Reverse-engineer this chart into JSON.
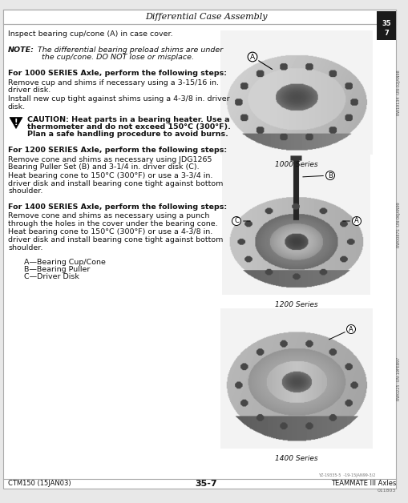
{
  "title": "Differential Case Assembly",
  "header_text": "Differential Case Assembly",
  "tab_number": "35\n7",
  "footer_left": "CTM150 (15JAN03)",
  "footer_center": "35-7",
  "footer_right": "TEAMMATE III Axles",
  "footer_sub": "011803",
  "side_labels": [
    "RW19134 -UN-02JAN98",
    "RW0087S -UN-06JAN99",
    "RW0225 -UN-19FEB97"
  ],
  "image_captions": [
    "1000 Series",
    "1200 Series",
    "1400 Series"
  ],
  "page_bg": "#e8e8e8",
  "content_bg": "#ffffff",
  "border_color": "#aaaaaa",
  "text_color": "#111111",
  "side_tab_color": "#1a1a1a",
  "font_size": 6.8,
  "font_size_bold": 6.8
}
